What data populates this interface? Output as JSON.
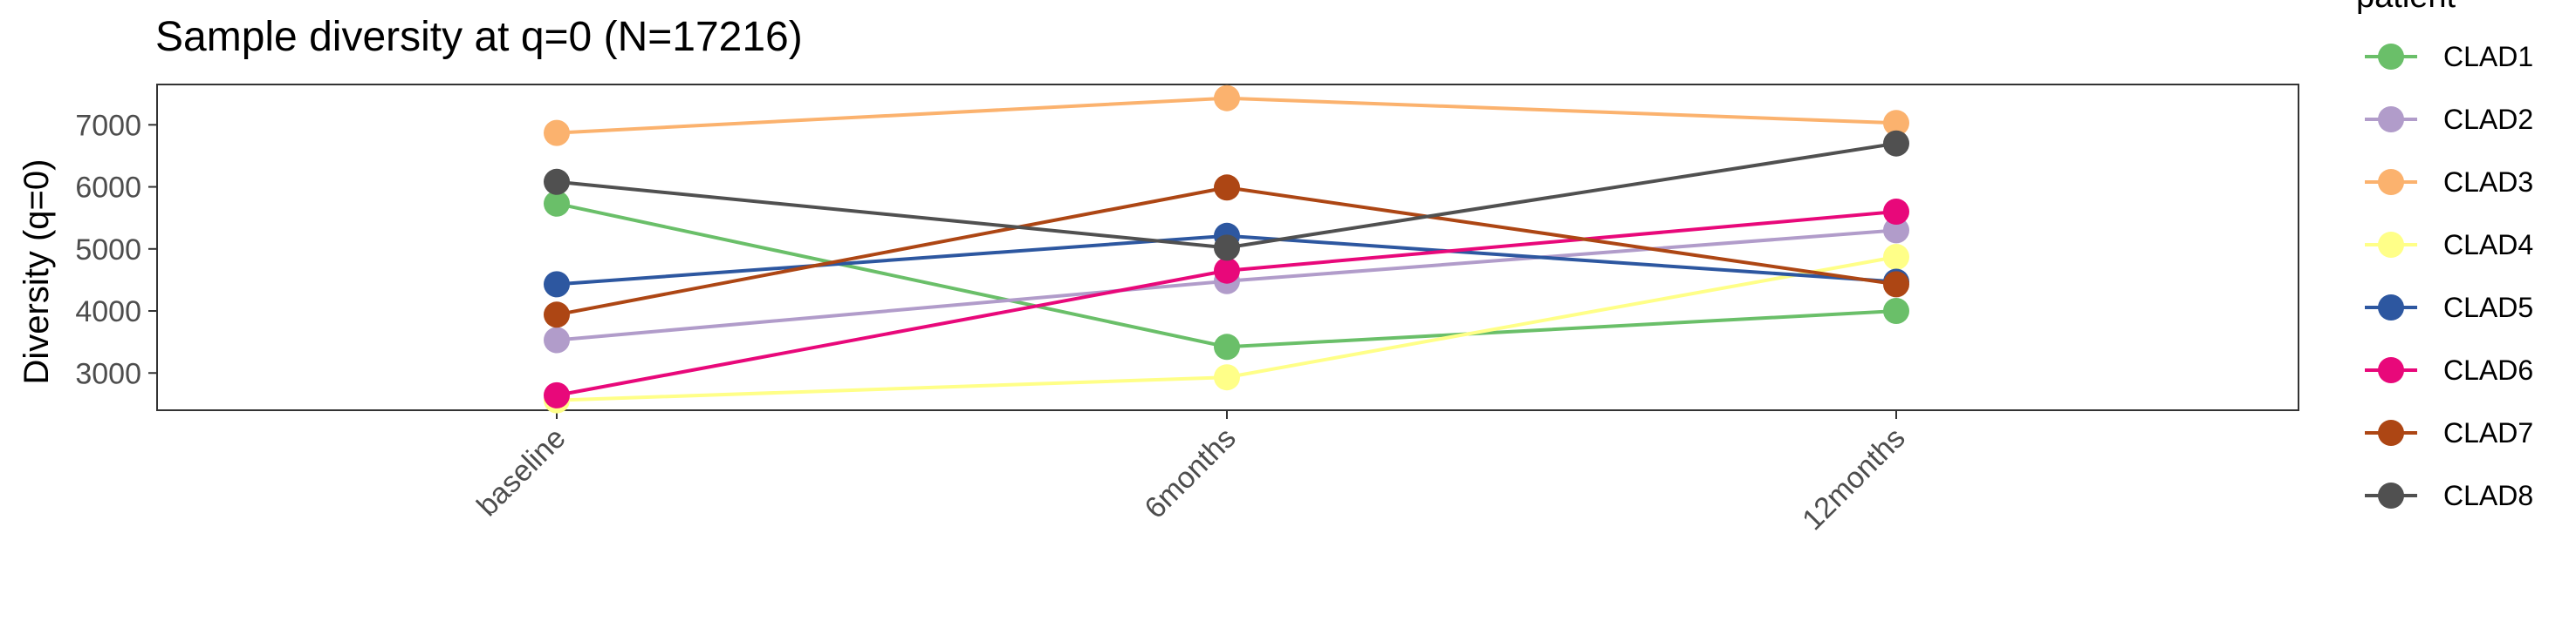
{
  "chart_data": {
    "type": "line",
    "title": "Sample diversity at q=0 (N=17216)",
    "xlabel": "",
    "ylabel": "Diversity (q=0)",
    "categories": [
      "baseline",
      "6months",
      "12months"
    ],
    "ylim": [
      2400,
      7650
    ],
    "yticks": [
      3000,
      4000,
      5000,
      6000,
      7000
    ],
    "grid": false,
    "legend": {
      "title": "patient",
      "position": "right"
    },
    "series": [
      {
        "name": "CLAD1",
        "color": "#6ABF69",
        "values": [
          5730,
          3420,
          4000
        ]
      },
      {
        "name": "CLAD2",
        "color": "#B19CCA",
        "values": [
          3530,
          4480,
          5300
        ]
      },
      {
        "name": "CLAD3",
        "color": "#FBB26E",
        "values": [
          6870,
          7430,
          7030
        ]
      },
      {
        "name": "CLAD4",
        "color": "#FFFF88",
        "values": [
          2560,
          2930,
          4870
        ]
      },
      {
        "name": "CLAD5",
        "color": "#2D57A0",
        "values": [
          4430,
          5210,
          4470
        ]
      },
      {
        "name": "CLAD6",
        "color": "#E8087A",
        "values": [
          2640,
          4650,
          5600
        ]
      },
      {
        "name": "CLAD7",
        "color": "#AD4614",
        "values": [
          3940,
          5990,
          4430
        ]
      },
      {
        "name": "CLAD8",
        "color": "#505050",
        "values": [
          6080,
          5020,
          6700
        ]
      }
    ]
  }
}
